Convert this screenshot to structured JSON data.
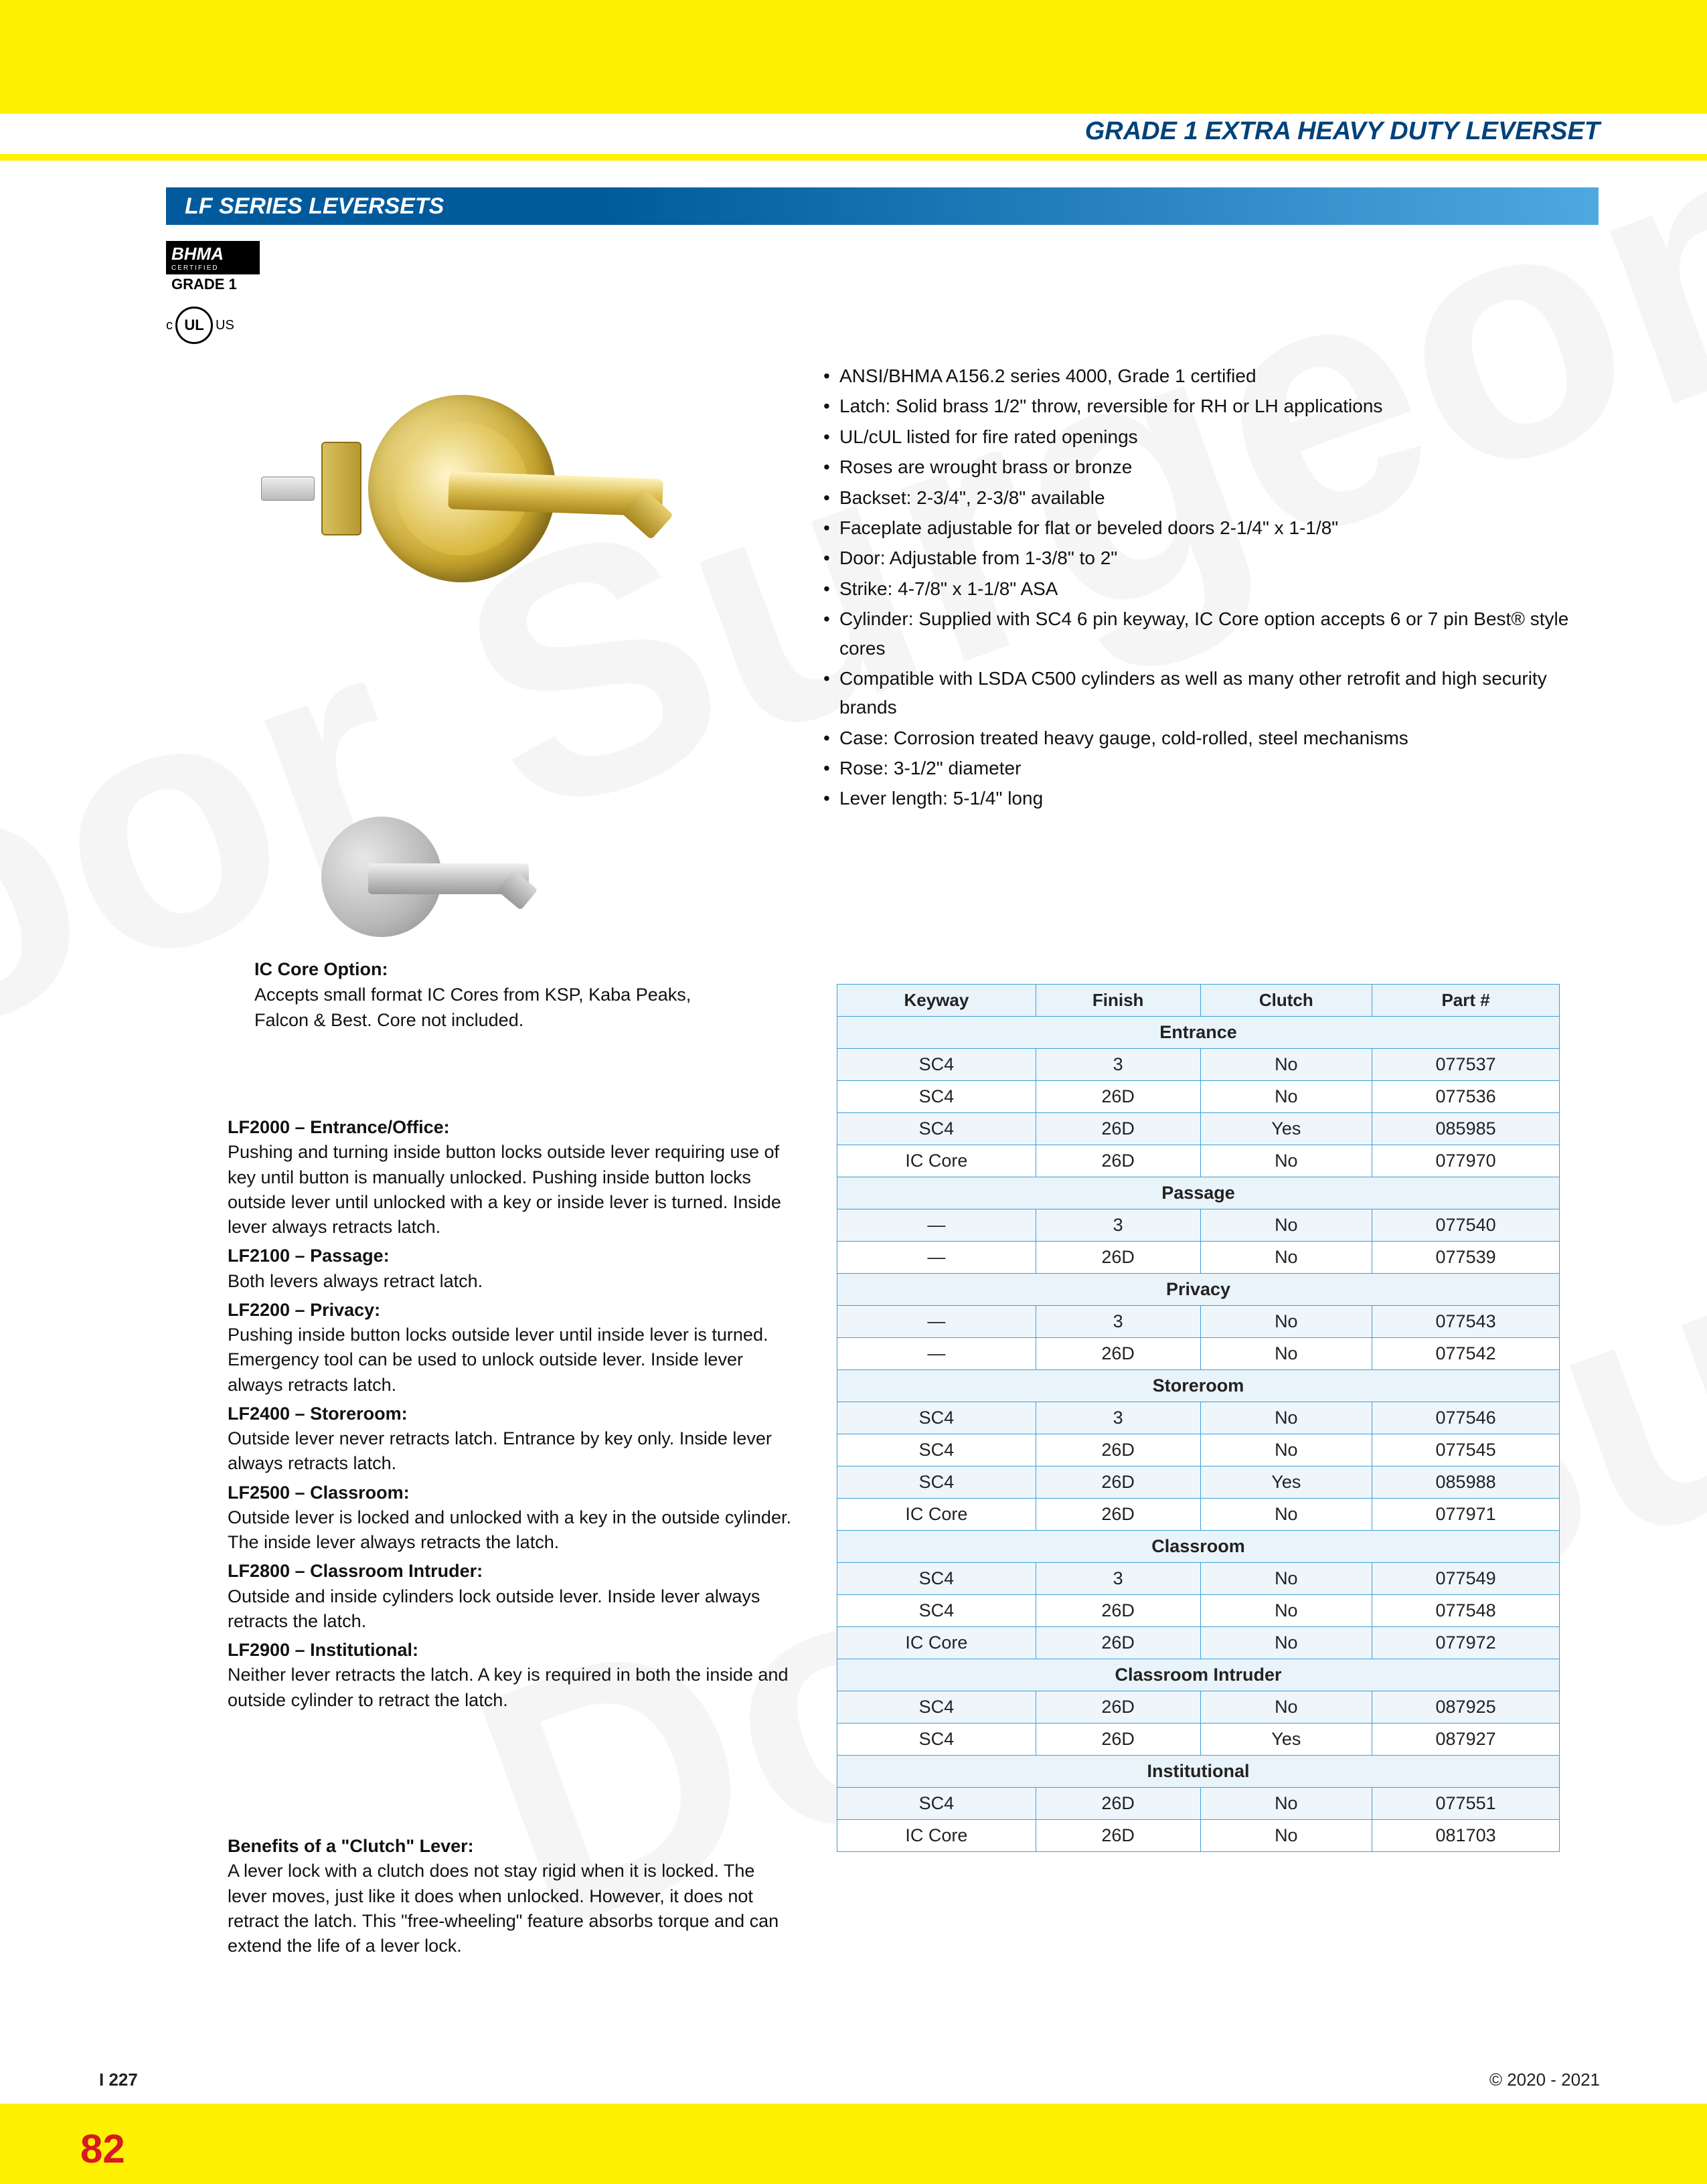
{
  "watermark": "Door Surgeon .com",
  "header": {
    "title": "GRADE 1 EXTRA HEAVY DUTY LEVERSET",
    "section": "LF SERIES LEVERSETS"
  },
  "badges": {
    "bhma_label": "BHMA",
    "bhma_cert": "CERTIFIED",
    "bhma_grade": "GRADE 1",
    "ul_c": "c",
    "ul_mark": "UL",
    "ul_us": "US"
  },
  "specs": [
    "ANSI/BHMA A156.2 series 4000, Grade 1 certified",
    "Latch: Solid brass 1/2\" throw, reversible for RH or LH applications",
    "UL/cUL listed for fire rated openings",
    "Roses are wrought brass or bronze",
    "Backset: 2-3/4\", 2-3/8\" available",
    "Faceplate adjustable for flat or beveled doors 2-1/4\" x 1-1/8\"",
    "Door: Adjustable from 1-3/8\" to 2\"",
    "Strike: 4-7/8\" x 1-1/8\" ASA",
    "Cylinder: Supplied with SC4 6 pin keyway, IC Core option accepts 6 or 7 pin Best® style cores",
    "Compatible with LSDA C500 cylinders as well as many other retrofit and high security brands",
    "Case: Corrosion treated heavy gauge, cold-rolled, steel mechanisms",
    "Rose: 3-1/2\" diameter",
    "Lever length: 5-1/4\" long"
  ],
  "ic_core": {
    "title": "IC Core Option:",
    "text": "Accepts small format IC Cores from KSP, Kaba Peaks, Falcon & Best. Core not included."
  },
  "functions": [
    {
      "title": "LF2000 – Entrance/Office:",
      "text": "Pushing and turning inside button locks outside lever requiring use of key until button is manually unlocked. Pushing inside button locks outside lever until unlocked with a key or inside lever is turned. Inside lever always retracts latch."
    },
    {
      "title": "LF2100 – Passage:",
      "text": "Both levers always retract latch."
    },
    {
      "title": "LF2200 – Privacy:",
      "text": "Pushing inside button locks outside lever until inside lever is turned. Emergency tool can be used to unlock outside lever. Inside lever always retracts latch."
    },
    {
      "title": "LF2400 – Storeroom:",
      "text": "Outside lever never retracts latch. Entrance by key only. Inside lever always retracts latch."
    },
    {
      "title": "LF2500 – Classroom:",
      "text": "Outside lever is locked and unlocked with a key in the outside cylinder. The inside lever always retracts the latch."
    },
    {
      "title": "LF2800 – Classroom Intruder:",
      "text": "Outside and inside cylinders lock outside lever. Inside lever always retracts the latch."
    },
    {
      "title": "LF2900 – Institutional:",
      "text": "Neither lever retracts the latch. A key is required in both the inside and outside cylinder to retract the latch."
    }
  ],
  "clutch": {
    "title": "Benefits of a \"Clutch\" Lever:",
    "text": "A lever lock with a clutch does not stay rigid when it is locked. The lever moves, just like it does when unlocked. However, it does not retract the latch. This \"free-wheeling\" feature absorbs torque and can extend the life of a lever lock."
  },
  "table": {
    "headers": [
      "Keyway",
      "Finish",
      "Clutch",
      "Part #"
    ],
    "groups": [
      {
        "name": "Entrance",
        "rows": [
          [
            "SC4",
            "3",
            "No",
            "077537"
          ],
          [
            "SC4",
            "26D",
            "No",
            "077536"
          ],
          [
            "SC4",
            "26D",
            "Yes",
            "085985"
          ],
          [
            "IC Core",
            "26D",
            "No",
            "077970"
          ]
        ]
      },
      {
        "name": "Passage",
        "rows": [
          [
            "—",
            "3",
            "No",
            "077540"
          ],
          [
            "—",
            "26D",
            "No",
            "077539"
          ]
        ]
      },
      {
        "name": "Privacy",
        "rows": [
          [
            "—",
            "3",
            "No",
            "077543"
          ],
          [
            "—",
            "26D",
            "No",
            "077542"
          ]
        ]
      },
      {
        "name": "Storeroom",
        "rows": [
          [
            "SC4",
            "3",
            "No",
            "077546"
          ],
          [
            "SC4",
            "26D",
            "No",
            "077545"
          ],
          [
            "SC4",
            "26D",
            "Yes",
            "085988"
          ],
          [
            "IC Core",
            "26D",
            "No",
            "077971"
          ]
        ]
      },
      {
        "name": "Classroom",
        "rows": [
          [
            "SC4",
            "3",
            "No",
            "077549"
          ],
          [
            "SC4",
            "26D",
            "No",
            "077548"
          ],
          [
            "IC Core",
            "26D",
            "No",
            "077972"
          ]
        ]
      },
      {
        "name": "Classroom Intruder",
        "rows": [
          [
            "SC4",
            "26D",
            "No",
            "087925"
          ],
          [
            "SC4",
            "26D",
            "Yes",
            "087927"
          ]
        ]
      },
      {
        "name": "Institutional",
        "rows": [
          [
            "SC4",
            "26D",
            "No",
            "077551"
          ],
          [
            "IC Core",
            "26D",
            "No",
            "081703"
          ]
        ]
      }
    ]
  },
  "footer": {
    "code": "I 227",
    "page": "82",
    "copyright": "© 2020 - 2021"
  },
  "colors": {
    "yellow": "#fff200",
    "blue_dark": "#005a9c",
    "blue_light": "#4fa8e0",
    "table_border": "#3ca0d8",
    "table_head_bg": "#e9f3fa",
    "red": "#d71920"
  }
}
